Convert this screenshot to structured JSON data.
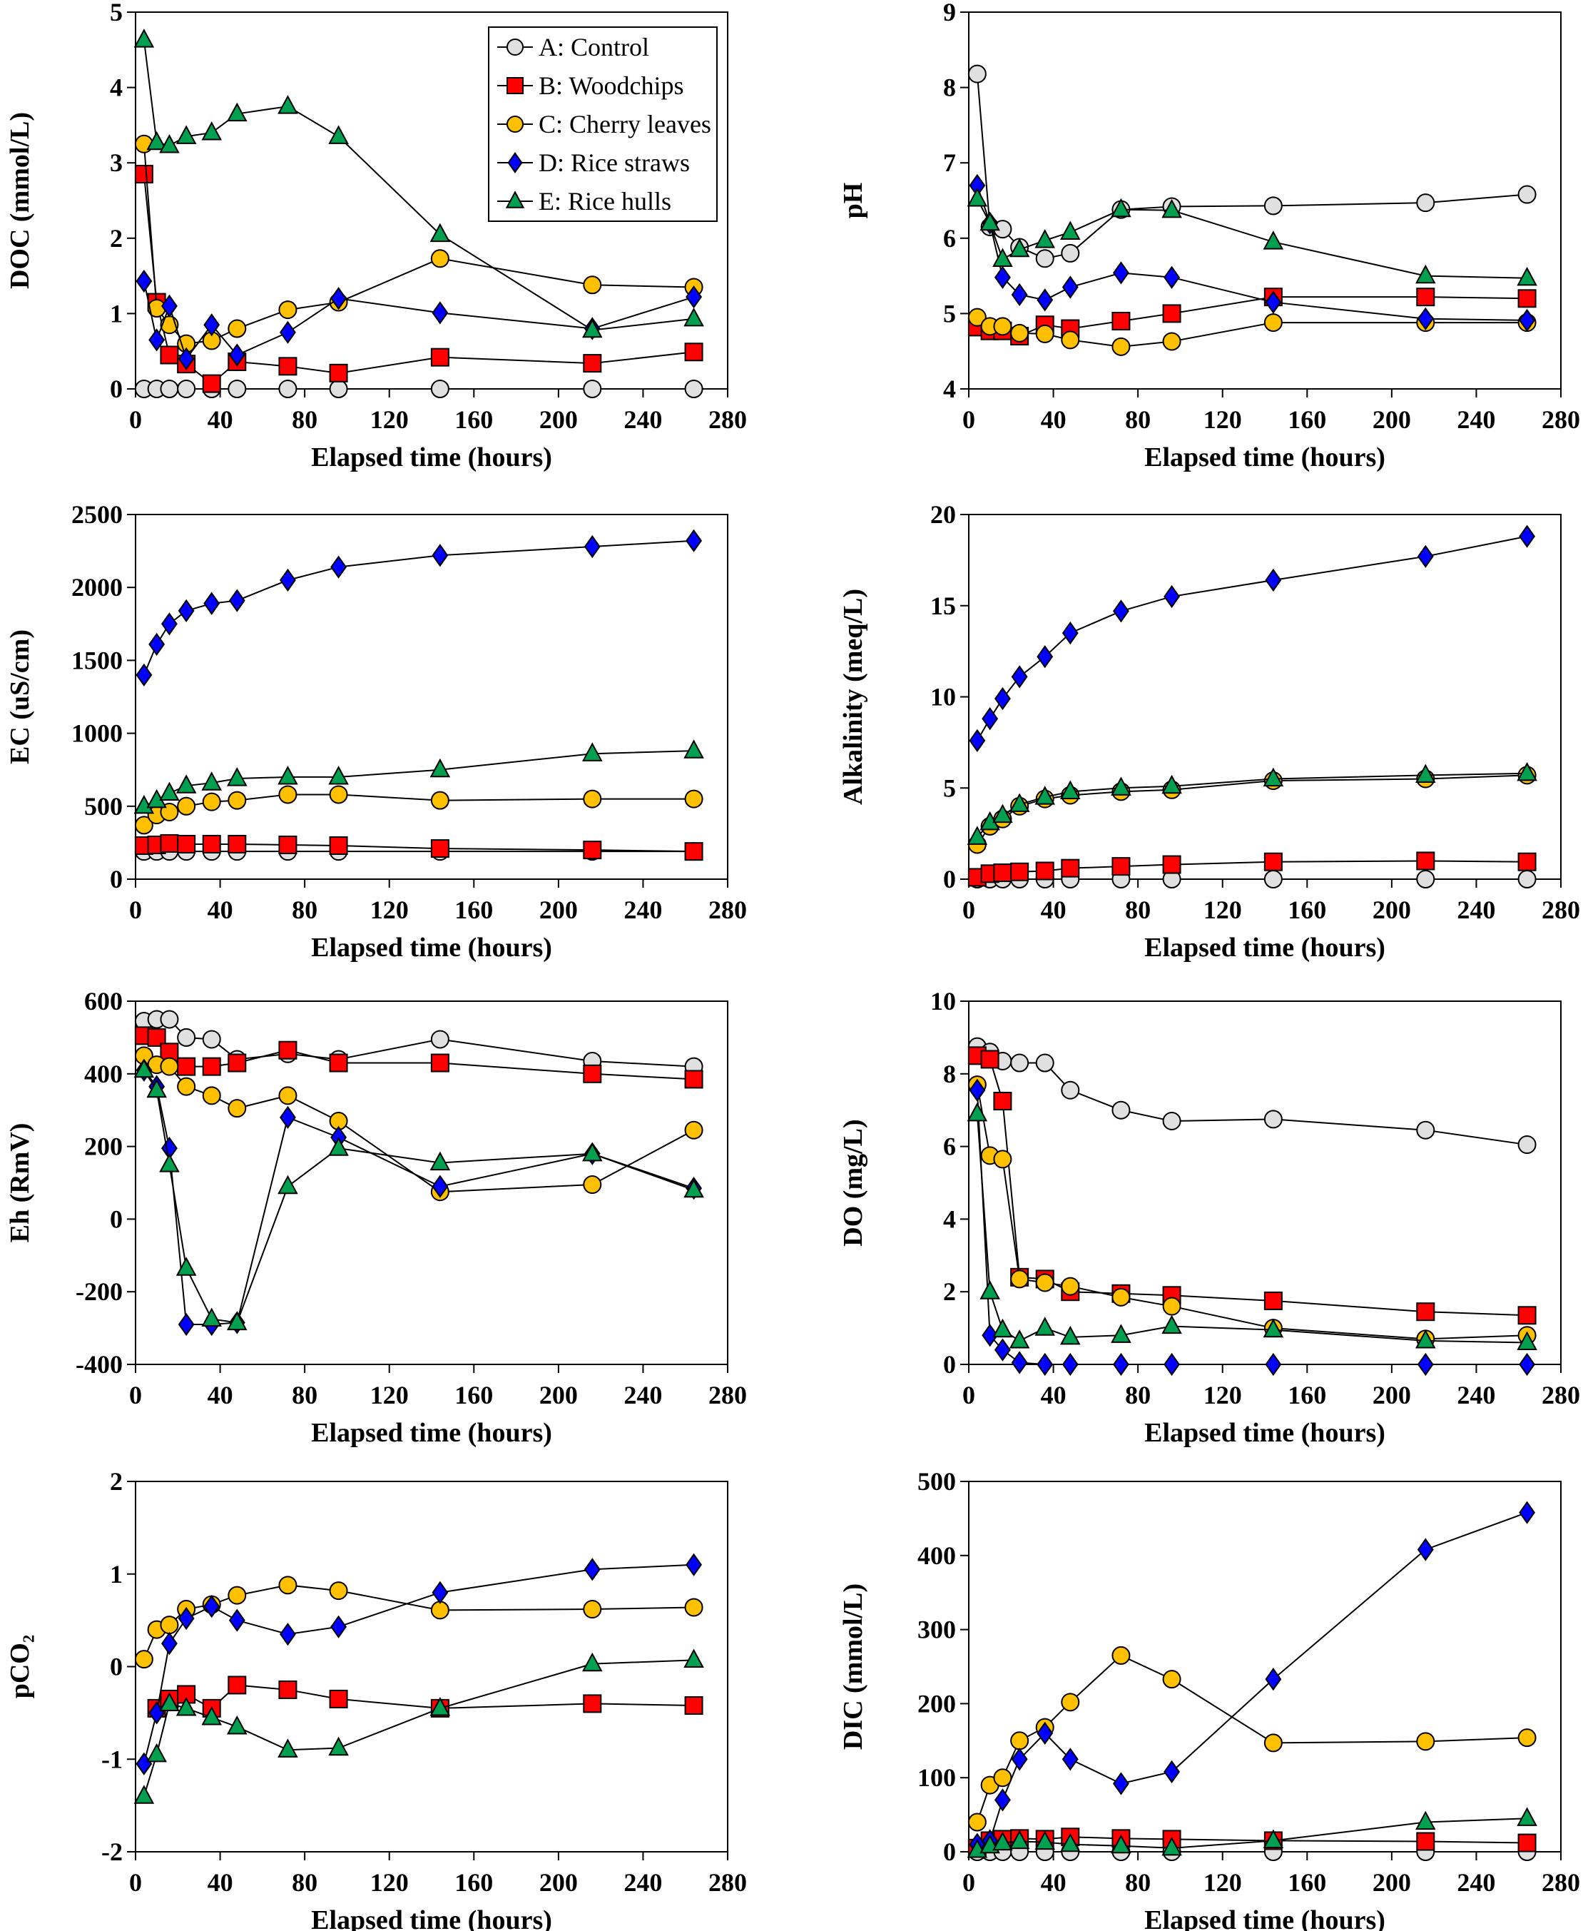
{
  "legend": [
    {
      "key": "A",
      "label": "A: Control",
      "marker": "circle",
      "color": "#e0e0e0"
    },
    {
      "key": "B",
      "label": "B: Woodchips",
      "marker": "square",
      "color": "#ff0000"
    },
    {
      "key": "C",
      "label": "C: Cherry leaves",
      "marker": "circle",
      "color": "#ffc000"
    },
    {
      "key": "D",
      "label": "D: Rice straws",
      "marker": "diamond",
      "color": "#0000ff"
    },
    {
      "key": "E",
      "label": "E: Rice hulls",
      "marker": "triangle",
      "color": "#00a050"
    }
  ],
  "chart_data": [
    {
      "type": "line",
      "ylabel": "DOC (mmol/L)",
      "xlabel": "Elapsed time (hours)",
      "xlim": [
        0,
        280
      ],
      "xticks": [
        0,
        40,
        80,
        120,
        160,
        200,
        240,
        280
      ],
      "ylim": [
        0,
        5
      ],
      "yticks": [
        0,
        1,
        2,
        3,
        4,
        5
      ],
      "x": [
        4,
        10,
        16,
        24,
        36,
        48,
        72,
        96,
        144,
        216,
        264
      ],
      "series": [
        {
          "name": "A: Control",
          "values": [
            0,
            0,
            0,
            0,
            0,
            0,
            0,
            0,
            0,
            0,
            0
          ]
        },
        {
          "name": "B: Woodchips",
          "values": [
            2.85,
            1.15,
            0.45,
            0.33,
            0.07,
            0.36,
            0.3,
            0.21,
            0.42,
            0.34,
            0.49
          ]
        },
        {
          "name": "C: Cherry leaves",
          "values": [
            3.25,
            1.07,
            0.85,
            0.6,
            0.64,
            0.8,
            1.05,
            1.15,
            1.73,
            1.38,
            1.35
          ]
        },
        {
          "name": "D: Rice straws",
          "values": [
            1.43,
            0.65,
            1.1,
            0.4,
            0.85,
            0.45,
            0.75,
            1.2,
            1.01,
            0.8,
            1.22
          ]
        },
        {
          "name": "E: Rice hulls",
          "values": [
            4.63,
            3.27,
            3.23,
            3.35,
            3.4,
            3.65,
            3.75,
            3.35,
            2.05,
            0.78,
            0.93
          ]
        }
      ]
    },
    {
      "type": "line",
      "ylabel": "pH",
      "xlabel": "Elapsed time (hours)",
      "xlim": [
        0,
        280
      ],
      "xticks": [
        0,
        40,
        80,
        120,
        160,
        200,
        240,
        280
      ],
      "ylim": [
        4,
        9
      ],
      "yticks": [
        4,
        5,
        6,
        7,
        8,
        9
      ],
      "x": [
        4,
        10,
        16,
        24,
        36,
        48,
        72,
        96,
        144,
        216,
        264
      ],
      "series": [
        {
          "name": "A: Control",
          "values": [
            8.18,
            6.15,
            6.12,
            5.88,
            5.73,
            5.8,
            6.38,
            6.42,
            6.43,
            6.47,
            6.58
          ]
        },
        {
          "name": "B: Woodchips",
          "values": [
            4.82,
            4.77,
            4.77,
            4.7,
            4.85,
            4.8,
            4.9,
            5.0,
            5.22,
            5.22,
            5.2
          ]
        },
        {
          "name": "C: Cherry leaves",
          "values": [
            4.95,
            4.83,
            4.83,
            4.74,
            4.73,
            4.65,
            4.56,
            4.63,
            4.88,
            4.88,
            4.88
          ]
        },
        {
          "name": "D: Rice straws",
          "values": [
            6.7,
            6.2,
            5.48,
            5.25,
            5.18,
            5.35,
            5.54,
            5.48,
            5.15,
            4.93,
            4.91
          ]
        },
        {
          "name": "E: Rice hulls",
          "values": [
            6.52,
            6.2,
            5.72,
            5.85,
            5.97,
            6.08,
            6.38,
            6.37,
            5.95,
            5.5,
            5.47
          ]
        }
      ]
    },
    {
      "type": "line",
      "ylabel": "EC (uS/cm)",
      "xlabel": "Elapsed time (hours)",
      "xlim": [
        0,
        280
      ],
      "xticks": [
        0,
        40,
        80,
        120,
        160,
        200,
        240,
        280
      ],
      "ylim": [
        0,
        2500
      ],
      "yticks": [
        0,
        500,
        1000,
        1500,
        2000,
        2500
      ],
      "x": [
        4,
        10,
        16,
        24,
        36,
        48,
        72,
        96,
        144,
        216,
        264
      ],
      "series": [
        {
          "name": "A: Control",
          "values": [
            190,
            190,
            190,
            190,
            190,
            190,
            190,
            190,
            190,
            190,
            190
          ]
        },
        {
          "name": "B: Woodchips",
          "values": [
            230,
            235,
            245,
            240,
            240,
            240,
            235,
            230,
            210,
            200,
            190
          ]
        },
        {
          "name": "C: Cherry leaves",
          "values": [
            370,
            440,
            460,
            500,
            530,
            540,
            580,
            580,
            540,
            550,
            550
          ]
        },
        {
          "name": "D: Rice straws",
          "values": [
            1400,
            1610,
            1750,
            1840,
            1890,
            1910,
            2050,
            2140,
            2220,
            2280,
            2320
          ]
        },
        {
          "name": "E: Rice hulls",
          "values": [
            500,
            540,
            590,
            640,
            660,
            690,
            700,
            700,
            750,
            860,
            880
          ]
        }
      ]
    },
    {
      "type": "line",
      "ylabel": "Alkalinity (meq/L)",
      "xlabel": "Elapsed time (hours)",
      "xlim": [
        0,
        280
      ],
      "xticks": [
        0,
        40,
        80,
        120,
        160,
        200,
        240,
        280
      ],
      "ylim": [
        0,
        20
      ],
      "yticks": [
        0,
        5,
        10,
        15,
        20
      ],
      "x": [
        4,
        10,
        16,
        24,
        36,
        48,
        72,
        96,
        144,
        216,
        264
      ],
      "series": [
        {
          "name": "A: Control",
          "values": [
            0,
            0,
            0,
            0,
            0,
            0,
            0,
            0,
            0,
            0,
            0
          ]
        },
        {
          "name": "B: Woodchips",
          "values": [
            0.1,
            0.3,
            0.35,
            0.4,
            0.45,
            0.6,
            0.7,
            0.8,
            0.95,
            1.0,
            0.95
          ]
        },
        {
          "name": "C: Cherry leaves",
          "values": [
            1.9,
            2.9,
            3.3,
            4.0,
            4.4,
            4.6,
            4.8,
            4.9,
            5.4,
            5.5,
            5.7
          ]
        },
        {
          "name": "D: Rice straws",
          "values": [
            7.6,
            8.8,
            9.9,
            11.1,
            12.2,
            13.5,
            14.7,
            15.5,
            16.4,
            17.7,
            18.8
          ]
        },
        {
          "name": "E: Rice hulls",
          "values": [
            2.3,
            3.1,
            3.5,
            4.1,
            4.5,
            4.8,
            5.0,
            5.1,
            5.5,
            5.7,
            5.8
          ]
        }
      ]
    },
    {
      "type": "line",
      "ylabel": "Eh (RmV)",
      "xlabel": "Elapsed time (hours)",
      "xlim": [
        0,
        280
      ],
      "xticks": [
        0,
        40,
        80,
        120,
        160,
        200,
        240,
        280
      ],
      "ylim": [
        -400,
        600
      ],
      "yticks": [
        -400,
        -200,
        0,
        200,
        400,
        600
      ],
      "x": [
        4,
        10,
        16,
        24,
        36,
        48,
        72,
        96,
        144,
        216,
        264
      ],
      "series": [
        {
          "name": "A: Control",
          "values": [
            545,
            550,
            550,
            500,
            495,
            440,
            455,
            440,
            495,
            435,
            420
          ]
        },
        {
          "name": "B: Woodchips",
          "values": [
            505,
            500,
            460,
            420,
            420,
            430,
            465,
            430,
            430,
            400,
            385
          ]
        },
        {
          "name": "C: Cherry leaves",
          "values": [
            450,
            425,
            420,
            365,
            340,
            305,
            340,
            270,
            75,
            95,
            245
          ]
        },
        {
          "name": "D: Rice straws",
          "values": [
            410,
            365,
            195,
            -290,
            -290,
            -285,
            280,
            225,
            90,
            180,
            85
          ]
        },
        {
          "name": "E: Rice hulls",
          "values": [
            410,
            355,
            150,
            -135,
            -275,
            -285,
            90,
            195,
            155,
            180,
            80
          ]
        }
      ]
    },
    {
      "type": "line",
      "ylabel": "DO (mg/L)",
      "xlabel": "Elapsed time (hours)",
      "xlim": [
        0,
        280
      ],
      "xticks": [
        0,
        40,
        80,
        120,
        160,
        200,
        240,
        280
      ],
      "ylim": [
        0,
        10
      ],
      "yticks": [
        0,
        2,
        4,
        6,
        8,
        10
      ],
      "x": [
        4,
        10,
        16,
        24,
        36,
        48,
        72,
        96,
        144,
        216,
        264
      ],
      "series": [
        {
          "name": "A: Control",
          "values": [
            8.75,
            8.6,
            8.35,
            8.3,
            8.3,
            7.55,
            7.0,
            6.7,
            6.75,
            6.45,
            6.05
          ]
        },
        {
          "name": "B: Woodchips",
          "values": [
            8.5,
            8.4,
            7.25,
            2.4,
            2.35,
            2.0,
            1.95,
            1.9,
            1.75,
            1.45,
            1.35
          ]
        },
        {
          "name": "C: Cherry leaves",
          "values": [
            7.7,
            5.75,
            5.65,
            2.35,
            2.25,
            2.15,
            1.85,
            1.6,
            1.0,
            0.7,
            0.8
          ]
        },
        {
          "name": "D: Rice straws",
          "values": [
            7.55,
            0.8,
            0.4,
            0.05,
            0,
            0,
            0,
            0,
            0,
            0,
            0
          ]
        },
        {
          "name": "E: Rice hulls",
          "values": [
            6.9,
            2.0,
            0.95,
            0.65,
            1.0,
            0.75,
            0.8,
            1.05,
            0.95,
            0.65,
            0.6
          ]
        }
      ]
    },
    {
      "type": "line",
      "ylabel": "pCO₂",
      "xlabel": "Elapsed time (hours)",
      "xlim": [
        0,
        280
      ],
      "xticks": [
        0,
        40,
        80,
        120,
        160,
        200,
        240,
        280
      ],
      "ylim": [
        -2,
        2
      ],
      "yticks": [
        -2,
        -1,
        0,
        1,
        2
      ],
      "x": [
        4,
        10,
        16,
        24,
        36,
        48,
        72,
        96,
        144,
        216,
        264
      ],
      "series": [
        {
          "name": "A: Control",
          "values": [
            null,
            null,
            null,
            null,
            null,
            null,
            null,
            null,
            null,
            null,
            null
          ]
        },
        {
          "name": "B: Woodchips",
          "values": [
            null,
            -0.45,
            -0.35,
            -0.3,
            -0.45,
            -0.2,
            -0.25,
            -0.35,
            -0.45,
            -0.4,
            -0.42
          ]
        },
        {
          "name": "C: Cherry leaves",
          "values": [
            0.08,
            0.4,
            0.45,
            0.62,
            0.67,
            0.77,
            0.88,
            0.82,
            0.61,
            0.62,
            0.64
          ]
        },
        {
          "name": "D: Rice straws",
          "values": [
            -1.05,
            -0.5,
            0.25,
            0.52,
            0.65,
            0.5,
            0.35,
            0.43,
            0.8,
            1.05,
            1.1
          ]
        },
        {
          "name": "E: Rice hulls",
          "values": [
            -1.4,
            -0.95,
            -0.4,
            -0.45,
            -0.55,
            -0.65,
            -0.9,
            -0.88,
            -0.45,
            0.03,
            0.07
          ]
        }
      ]
    },
    {
      "type": "line",
      "ylabel": "DIC (mmol/L)",
      "xlabel": "Elapsed time (hours)",
      "xlim": [
        0,
        280
      ],
      "xticks": [
        0,
        40,
        80,
        120,
        160,
        200,
        240,
        280
      ],
      "ylim": [
        0,
        500
      ],
      "yticks": [
        0,
        100,
        200,
        300,
        400,
        500
      ],
      "x": [
        4,
        10,
        16,
        24,
        36,
        48,
        72,
        96,
        144,
        216,
        264
      ],
      "series": [
        {
          "name": "A: Control",
          "values": [
            0,
            0,
            0,
            0,
            0,
            0,
            0,
            0,
            0,
            0,
            0
          ]
        },
        {
          "name": "B: Woodchips",
          "values": [
            5,
            15,
            17,
            18,
            17,
            20,
            18,
            17,
            15,
            14,
            12
          ]
        },
        {
          "name": "C: Cherry leaves",
          "values": [
            40,
            90,
            100,
            150,
            168,
            202,
            265,
            233,
            147,
            149,
            154
          ]
        },
        {
          "name": "D: Rice straws",
          "values": [
            10,
            15,
            70,
            125,
            160,
            125,
            92,
            108,
            233,
            408,
            458
          ]
        },
        {
          "name": "E: Rice hulls",
          "values": [
            2,
            8,
            12,
            14,
            13,
            10,
            8,
            5,
            15,
            40,
            45
          ]
        }
      ]
    }
  ]
}
